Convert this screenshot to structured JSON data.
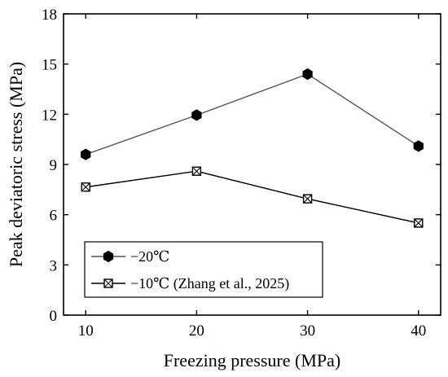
{
  "chart_data": {
    "type": "line",
    "title": "",
    "xlabel": "Freezing pressure (MPa)",
    "ylabel": "Peak deviatoric stress (MPa)",
    "xlim": [
      8,
      42
    ],
    "ylim": [
      0,
      18
    ],
    "xticks": [
      10,
      20,
      30,
      40
    ],
    "yticks": [
      0,
      3,
      6,
      9,
      12,
      15,
      18
    ],
    "x": [
      10,
      20,
      30,
      40
    ],
    "grid": false,
    "legend_position": "bottom-left",
    "series": [
      {
        "name": "−20℃",
        "values": [
          9.6,
          11.95,
          14.4,
          10.1
        ],
        "marker": "filled-hexagon",
        "line_color": "#555555",
        "marker_color": "#000000"
      },
      {
        "name": "−10℃ (Zhang et al., 2025)",
        "values": [
          7.65,
          8.6,
          6.95,
          5.5
        ],
        "marker": "crossed-square",
        "line_color": "#000000",
        "marker_color": "#000000"
      }
    ]
  }
}
